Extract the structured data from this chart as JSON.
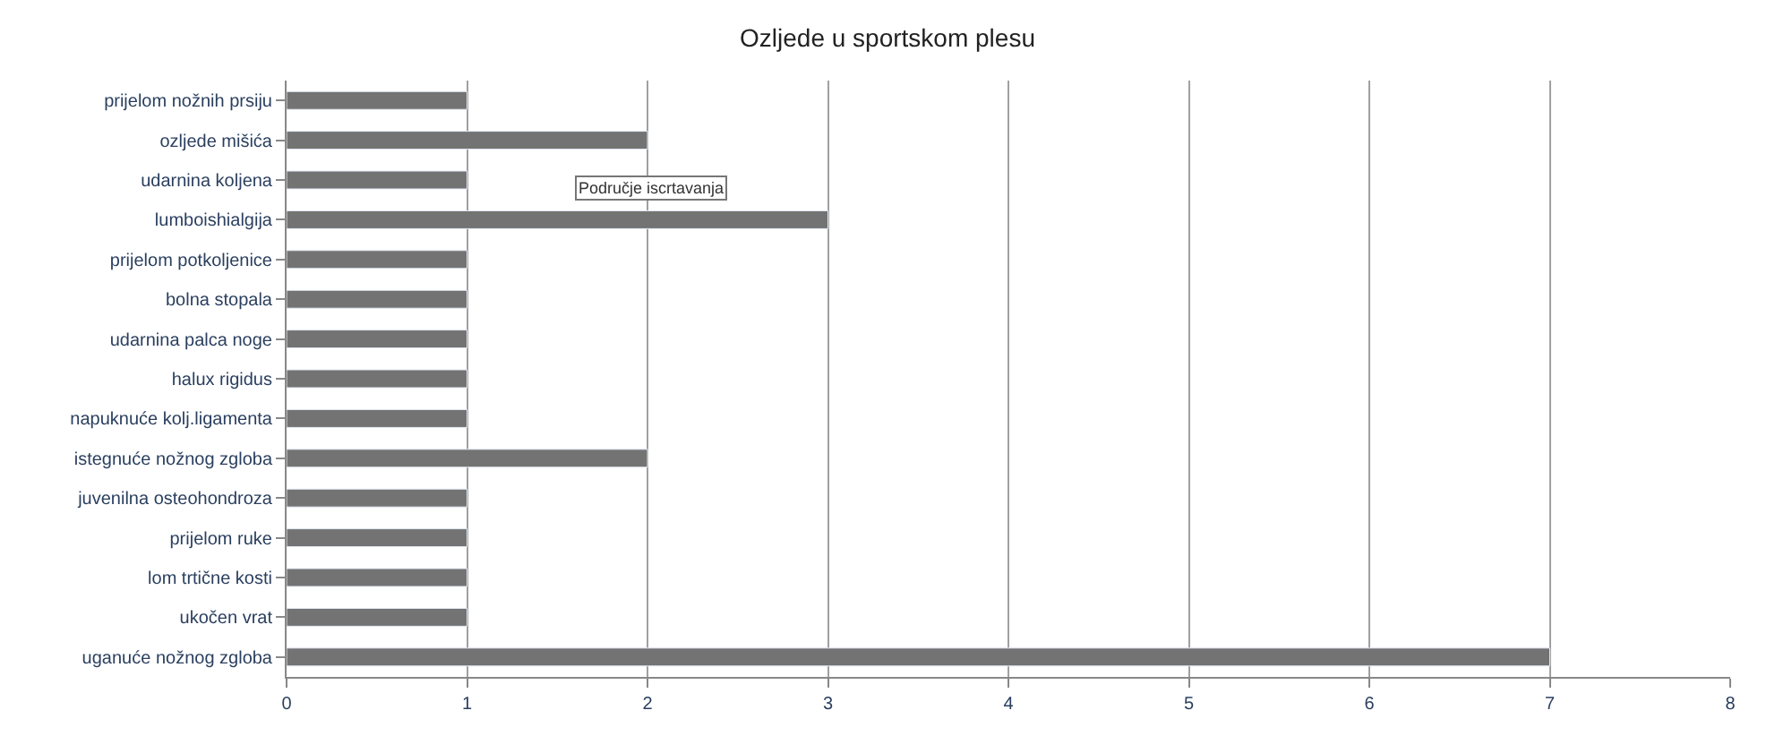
{
  "chart_data": {
    "type": "bar",
    "orientation": "horizontal",
    "title": "Ozljede u sportskom plesu",
    "categories": [
      "prijelom nožnih prsiju",
      "ozljede mišića",
      "udarnina koljena",
      "lumboishialgija",
      "prijelom potkoljenice",
      "bolna stopala",
      "udarnina palca noge",
      "halux rigidus",
      "napuknuće kolj.ligamenta",
      "istegnuće nožnog zgloba",
      "juvenilna osteohondroza",
      "prijelom ruke",
      "lom trtične kosti",
      "ukočen vrat",
      "uganuće nožnog zgloba"
    ],
    "values": [
      1,
      2,
      1,
      3,
      1,
      1,
      1,
      1,
      1,
      2,
      1,
      1,
      1,
      1,
      7
    ],
    "color": "#737373",
    "xlim": [
      0,
      8
    ],
    "xticks": [
      0,
      1,
      2,
      3,
      4,
      5,
      6,
      7,
      8
    ],
    "grid": "x",
    "annotations": [
      "Područje iscrtavanja"
    ]
  }
}
